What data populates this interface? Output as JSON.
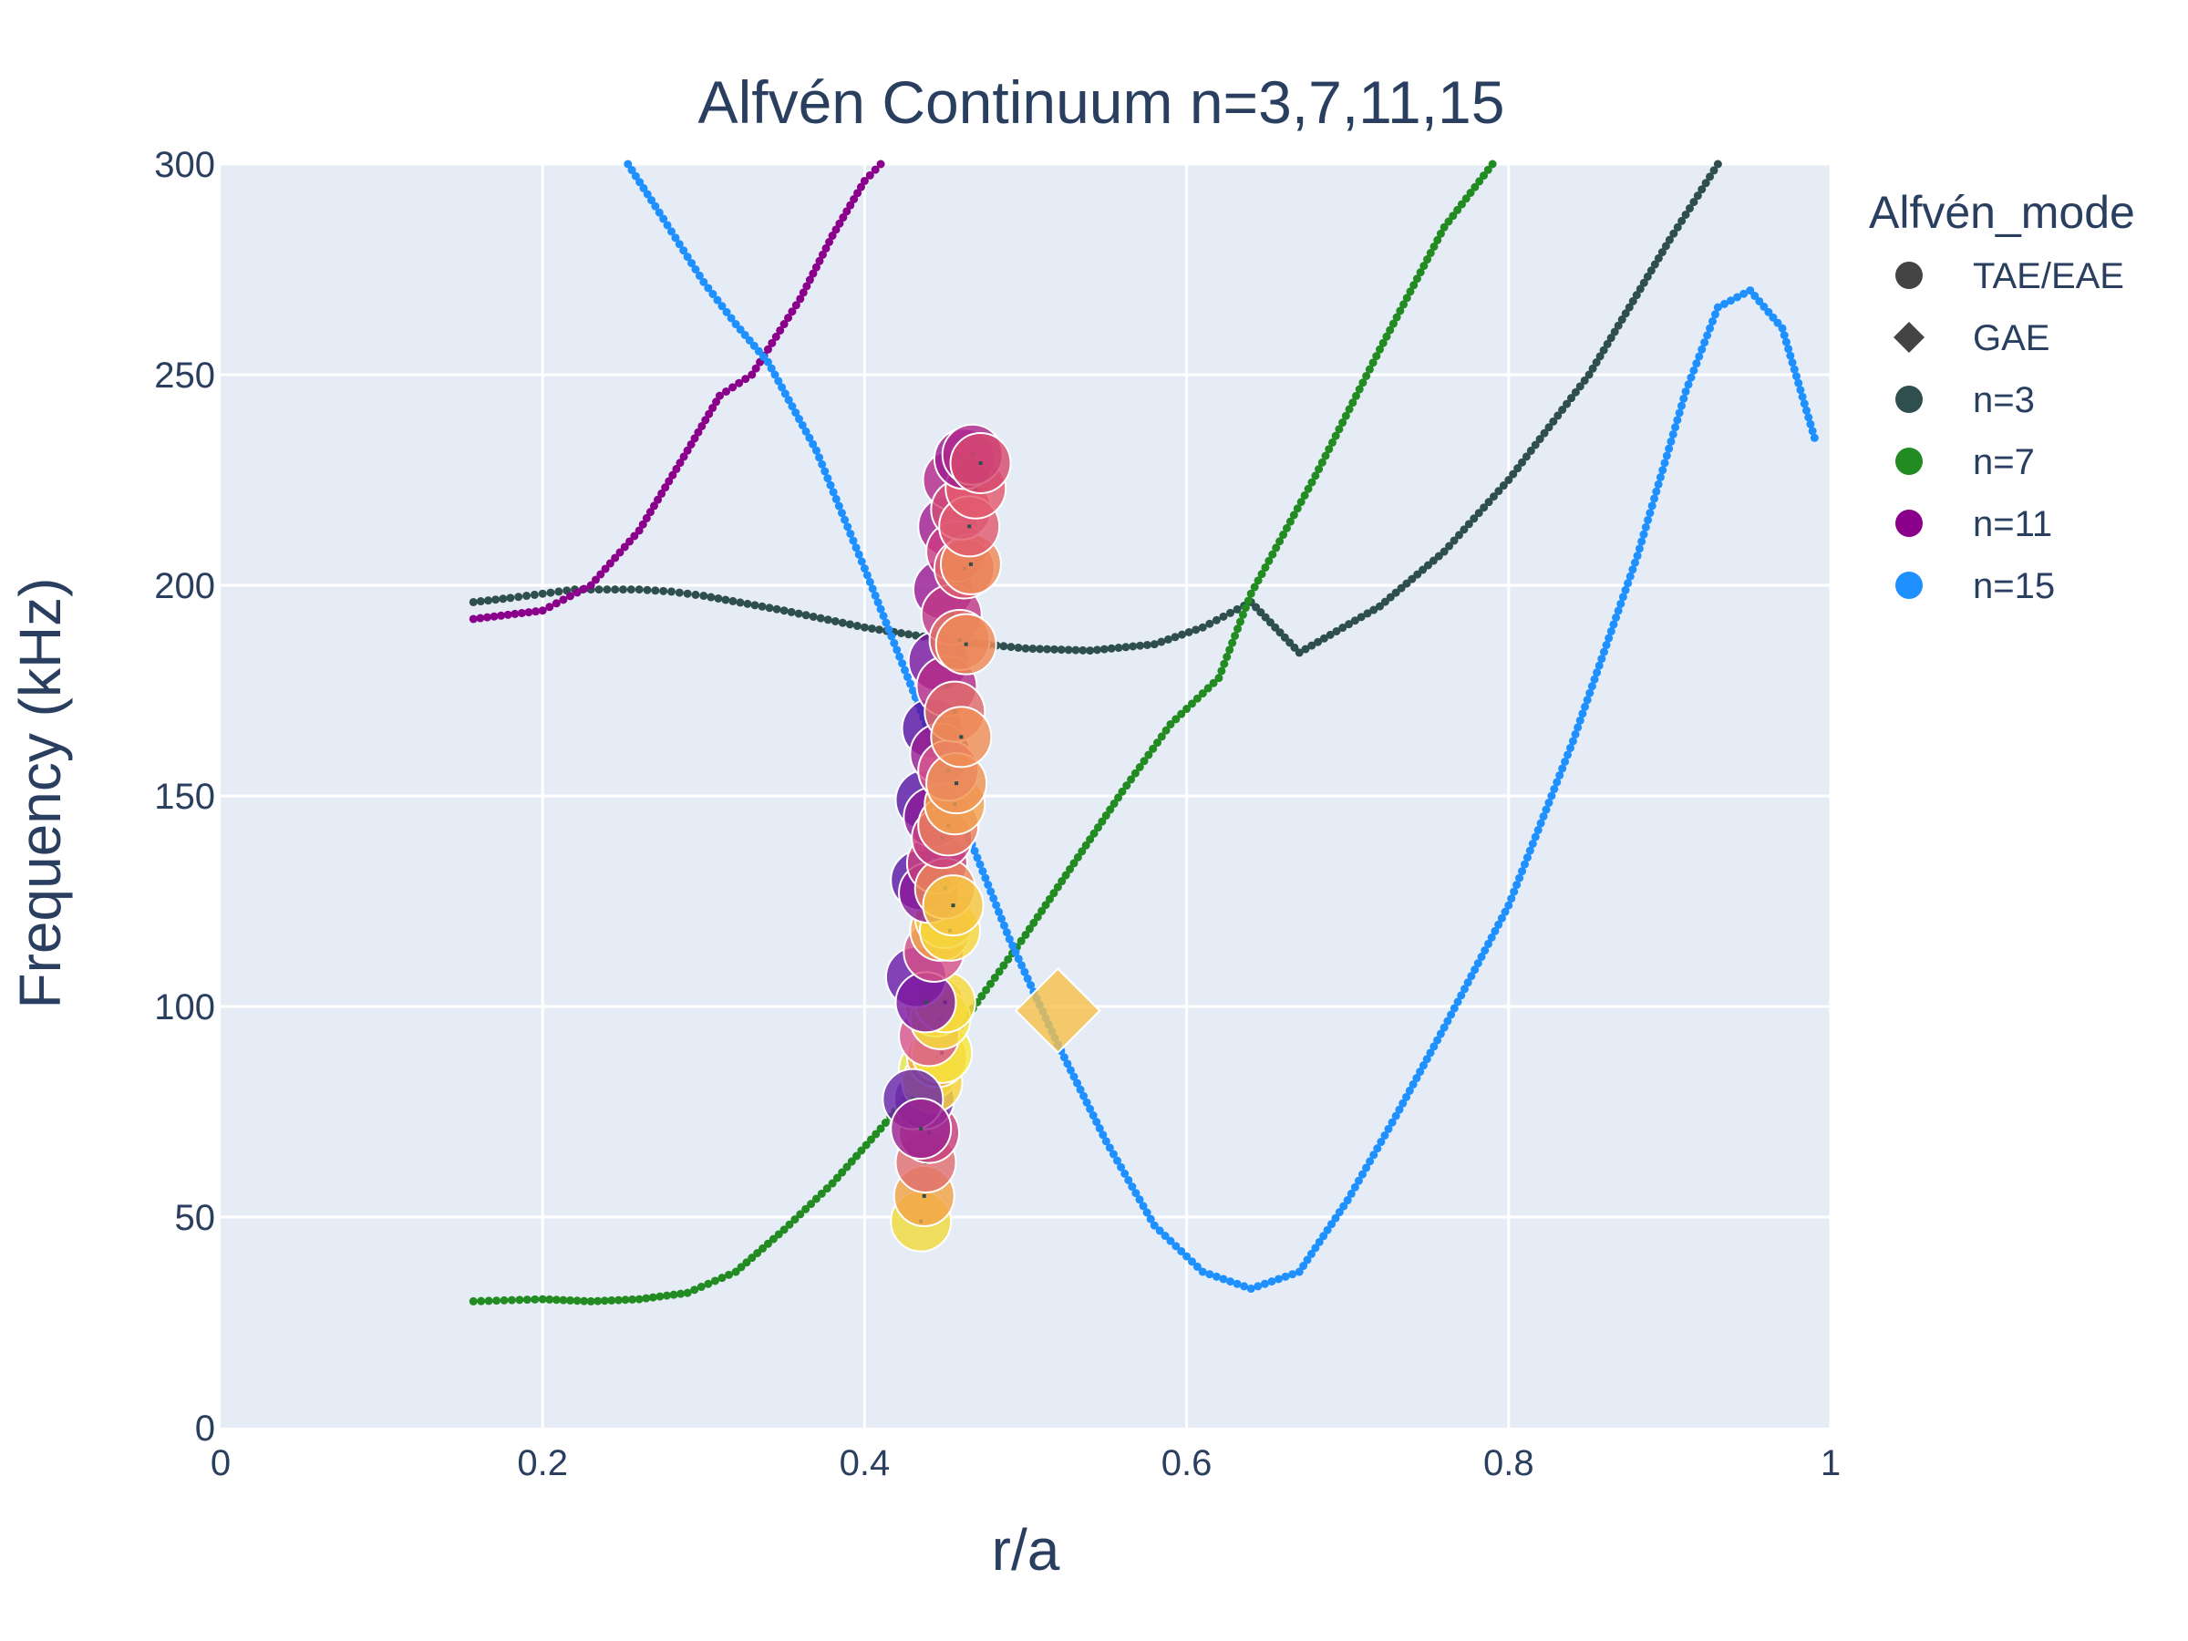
{
  "chart_data": {
    "type": "scatter",
    "title": "Alfvén Continuum n=3,7,11,15",
    "xlabel": "r/a",
    "ylabel": "Frequency (kHz)",
    "xlim": [
      0,
      1
    ],
    "ylim": [
      0,
      300
    ],
    "x_ticks": [
      "0",
      "0.2",
      "0.4",
      "0.6",
      "0.8",
      "1"
    ],
    "y_ticks": [
      "0",
      "50",
      "100",
      "150",
      "200",
      "250",
      "300"
    ],
    "grid": true,
    "legend": {
      "position": "right",
      "title": "Alfvén_mode",
      "entries": [
        {
          "label": "TAE/EAE",
          "symbol": "circle",
          "color": "#444444"
        },
        {
          "label": "GAE",
          "symbol": "diamond",
          "color": "#444444"
        },
        {
          "label": "n=3",
          "symbol": "circle",
          "color": "#2f4f4f"
        },
        {
          "label": "n=7",
          "symbol": "circle",
          "color": "#228b22"
        },
        {
          "label": "n=11",
          "symbol": "circle",
          "color": "#8b008b"
        },
        {
          "label": "n=15",
          "symbol": "circle",
          "color": "#1e90ff"
        }
      ]
    },
    "series": [
      {
        "name": "n=3",
        "color": "#2f4f4f",
        "x": [
          0.157,
          0.18,
          0.2,
          0.22,
          0.24,
          0.26,
          0.28,
          0.3,
          0.35,
          0.4,
          0.45,
          0.5,
          0.54,
          0.58,
          0.61,
          0.64,
          0.67,
          0.72,
          0.76,
          0.8,
          0.85,
          0.9,
          0.93
        ],
        "y": [
          196,
          197,
          198,
          199,
          199,
          199,
          198.5,
          197.5,
          194,
          190,
          187,
          185,
          184.5,
          186,
          190,
          196,
          184,
          195,
          208,
          225,
          250,
          282,
          300
        ]
      },
      {
        "name": "n=7",
        "color": "#228b22",
        "x": [
          0.157,
          0.2,
          0.23,
          0.26,
          0.29,
          0.32,
          0.35,
          0.38,
          0.41,
          0.44,
          0.47,
          0.5,
          0.53,
          0.56,
          0.59,
          0.62,
          0.64,
          0.66,
          0.68,
          0.72,
          0.76,
          0.79
        ],
        "y": [
          30,
          30.5,
          30,
          30.5,
          32,
          37,
          47,
          58,
          71,
          85,
          101,
          117,
          134,
          151,
          167,
          178,
          198,
          212,
          226,
          256,
          285,
          300
        ]
      },
      {
        "name": "n=11",
        "color": "#8b008b",
        "x": [
          0.157,
          0.2,
          0.23,
          0.26,
          0.29,
          0.31,
          0.33,
          0.34,
          0.36,
          0.38,
          0.4,
          0.41
        ],
        "y": [
          192,
          194,
          200,
          213,
          232,
          245,
          250,
          256,
          268,
          283,
          296,
          300
        ]
      },
      {
        "name": "n=15",
        "color": "#1e90ff",
        "x": [
          0.253,
          0.27,
          0.3,
          0.32,
          0.34,
          0.37,
          0.4,
          0.43,
          0.46,
          0.49,
          0.52,
          0.55,
          0.58,
          0.61,
          0.64,
          0.67,
          0.7,
          0.73,
          0.76,
          0.8,
          0.84,
          0.88,
          0.91,
          0.93,
          0.95,
          0.97,
          0.99
        ],
        "y": [
          300,
          290,
          272,
          262,
          253,
          232,
          204,
          175,
          145,
          116,
          91,
          68,
          48,
          37,
          33,
          37,
          54,
          74,
          95,
          124,
          163,
          207,
          246,
          266,
          270,
          261,
          235
        ]
      }
    ],
    "tae_eae_points": {
      "x": [
        0.435,
        0.437,
        0.438,
        0.44,
        0.437,
        0.44,
        0.442,
        0.445,
        0.448,
        0.43,
        0.435,
        0.44,
        0.444,
        0.447,
        0.45,
        0.432,
        0.438,
        0.443,
        0.447,
        0.45,
        0.453,
        0.435,
        0.44,
        0.445,
        0.45,
        0.455,
        0.438,
        0.443,
        0.448,
        0.452,
        0.456,
        0.442,
        0.447,
        0.452,
        0.457,
        0.446,
        0.451,
        0.456,
        0.46,
        0.449,
        0.454,
        0.459,
        0.463,
        0.452,
        0.457,
        0.462,
        0.466,
        0.455,
        0.46,
        0.465,
        0.469,
        0.462,
        0.467,
        0.472
      ],
      "y": [
        49,
        55,
        63,
        70,
        78,
        85,
        82,
        88,
        89,
        78,
        71,
        93,
        100,
        97,
        101,
        107,
        101,
        113,
        118,
        121,
        118,
        130,
        127,
        134,
        128,
        124,
        149,
        145,
        140,
        143,
        148,
        166,
        160,
        156,
        153,
        182,
        176,
        170,
        164,
        199,
        193,
        187,
        186,
        214,
        208,
        204,
        205,
        225,
        218,
        214,
        223,
        230,
        231,
        229
      ],
      "sizes": [
        8,
        8,
        9,
        9,
        9,
        9,
        9,
        9,
        9,
        9,
        9,
        9,
        9,
        9,
        9,
        9,
        9,
        9,
        9,
        9,
        9,
        9,
        9,
        9,
        9,
        9,
        9,
        9,
        9,
        9,
        9,
        9,
        9,
        9,
        9,
        9,
        9,
        9,
        9,
        9,
        9,
        9,
        9,
        9,
        9,
        9,
        9,
        9,
        9,
        9,
        9,
        9,
        9,
        9
      ],
      "colors": [
        "#f0d93a",
        "#f1a347",
        "#e07070",
        "#c8407e",
        "#7b2fa8",
        "#e8e84a",
        "#f5d33a",
        "#f2a64a",
        "#f5e83b",
        "#6a28a8",
        "#9c2390",
        "#d8578c",
        "#f3b048",
        "#f6e03a",
        "#f6d83c",
        "#6a1da8",
        "#7e1aa2",
        "#d65188",
        "#f2a54c",
        "#f5cd3d",
        "#f6d73b",
        "#5d1aa6",
        "#8b1b9b",
        "#c8407e",
        "#ec8558",
        "#f6c63f",
        "#5a18a4",
        "#8a1c98",
        "#c63d80",
        "#ea7f5b",
        "#f2a14d",
        "#5a15a4",
        "#9a1f92",
        "#d8578c",
        "#ef9452",
        "#7b1aa0",
        "#b52c88",
        "#e06a6a",
        "#f08f54",
        "#9a1c95",
        "#c03886",
        "#e47466",
        "#ee8a57",
        "#a41f91",
        "#c93c82",
        "#e0626e",
        "#ed8a57",
        "#b62a89",
        "#d24e78",
        "#e05c70",
        "#e35a6e",
        "#9e1c93",
        "#b0288b",
        "#d5496e"
      ]
    },
    "gae_points": {
      "x": [
        0.52
      ],
      "y": [
        99
      ],
      "colors": [
        "#f6c04a"
      ]
    }
  }
}
